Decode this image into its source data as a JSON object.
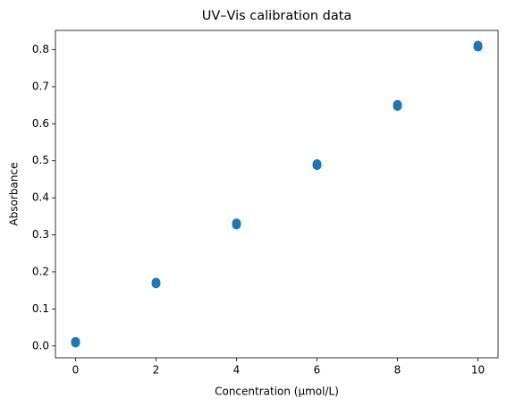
{
  "chart_data": {
    "type": "scatter",
    "title": "UV–Vis calibration data",
    "x_label": "Concentration (µmol/L)",
    "y_label": "Absorbance",
    "series": [
      {
        "color": "#1f77b4",
        "x": [
          0,
          0,
          2,
          2,
          4,
          4,
          6,
          6,
          8,
          8,
          10,
          10
        ],
        "values": [
          0.008,
          0.012,
          0.168,
          0.172,
          0.327,
          0.332,
          0.487,
          0.492,
          0.647,
          0.652,
          0.807,
          0.812
        ]
      }
    ],
    "xlim": [
      -0.5,
      10.5
    ],
    "xticks": [
      0,
      2,
      4,
      6,
      8,
      10
    ],
    "ylim": [
      -0.032,
      0.852
    ],
    "yticks": [
      {
        "value": 0,
        "label": "0.0"
      },
      0.1,
      0.2,
      0.3,
      0.4,
      0.5,
      0.6,
      0.7,
      0.8
    ],
    "grid": false
  }
}
